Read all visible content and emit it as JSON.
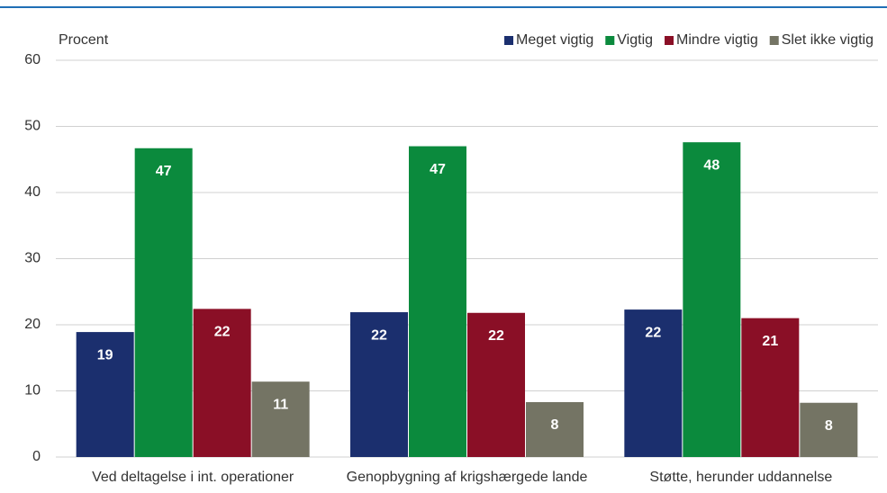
{
  "chart_data": {
    "type": "bar",
    "y_label": "Procent",
    "categories": [
      "Ved deltagelse i int. operationer",
      "Genopbygning af krigshærgede lande",
      "Støtte, herunder uddannelse"
    ],
    "series": [
      {
        "name": "Meget vigtig",
        "color": "#1b2f6e",
        "values": [
          18.9,
          21.9,
          22.3
        ],
        "value_labels": [
          "19",
          "22",
          "22"
        ]
      },
      {
        "name": "Vigtig",
        "color": "#0b8a3d",
        "values": [
          46.7,
          47.0,
          47.6
        ],
        "value_labels": [
          "47",
          "47",
          "48"
        ]
      },
      {
        "name": "Mindre vigtig",
        "color": "#8a0f26",
        "values": [
          22.4,
          21.8,
          21.0
        ],
        "value_labels": [
          "22",
          "22",
          "21"
        ]
      },
      {
        "name": "Slet ikke vigtig",
        "color": "#747464",
        "values": [
          11.4,
          8.3,
          8.2
        ],
        "value_labels": [
          "11",
          "8",
          "8"
        ]
      }
    ],
    "ylim": [
      0,
      60
    ],
    "yticks": [
      0,
      10,
      20,
      30,
      40,
      50,
      60
    ],
    "grid": true,
    "legend": "top-right"
  }
}
